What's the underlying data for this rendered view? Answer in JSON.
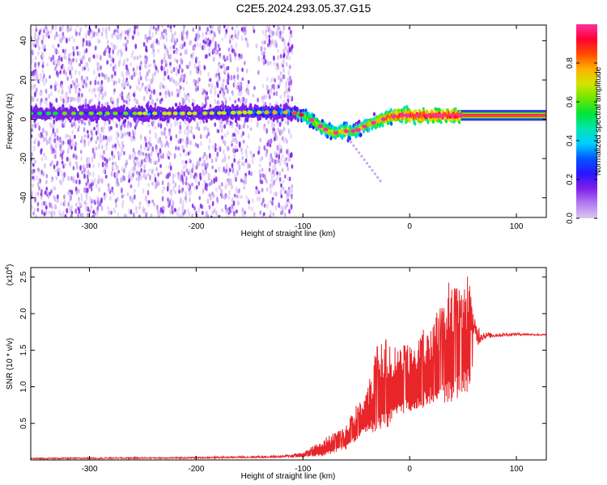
{
  "title": "C2E5.2024.293.05.37.G15",
  "chart_data": [
    {
      "type": "heatmap",
      "xlabel": "Height of straight line (km)",
      "ylabel": "Frequency (Hz)",
      "xlim": [
        -355,
        128
      ],
      "ylim": [
        -50,
        48
      ],
      "x_ticks": [
        -300,
        -200,
        -100,
        0,
        100
      ],
      "y_ticks": [
        -40,
        -20,
        0,
        20,
        40
      ],
      "colorbar": {
        "label": "Normalized spectral amplitude",
        "range": [
          0.0,
          1.0
        ],
        "ticks": [
          0.0,
          0.2,
          0.4,
          0.6,
          0.8
        ],
        "colors": [
          "#d9c8f2",
          "#b27bf0",
          "#7d1fe9",
          "#2a14ff",
          "#0057ff",
          "#00cfff",
          "#00e6b0",
          "#00e53a",
          "#6ae600",
          "#d3e600",
          "#ffb000",
          "#ff4d00",
          "#ff0033",
          "#ff2fa0"
        ]
      },
      "ridge": {
        "x": [
          -355,
          -300,
          -250,
          -200,
          -150,
          -110,
          -100,
          -90,
          -80,
          -70,
          -60,
          -50,
          -40,
          -30,
          -20,
          -10,
          0,
          10,
          20,
          30,
          40,
          50,
          128
        ],
        "y": [
          3,
          3,
          3,
          3,
          3.5,
          3.5,
          2,
          -1,
          -5,
          -7,
          -6,
          -6,
          -3,
          -1,
          1,
          2,
          2,
          2,
          2,
          2,
          2,
          2,
          2
        ],
        "amplitude": [
          0.3,
          0.35,
          0.4,
          0.4,
          0.45,
          0.5,
          0.7,
          0.75,
          0.8,
          0.8,
          0.8,
          0.75,
          0.8,
          0.85,
          0.9,
          0.95,
          1.0,
          1.0,
          1.0,
          1.0,
          1.0,
          1.0,
          1.0
        ]
      },
      "scatter_extent_x": [
        -355,
        -110
      ]
    },
    {
      "type": "line",
      "xlabel": "Height of straight line (km)",
      "ylabel": "SNR (10 * v/v)",
      "y_exponent_label": "(x10",
      "y_exponent_sup": "4",
      "y_exponent_close": ")",
      "xlim": [
        -355,
        128
      ],
      "ylim": [
        0,
        2.63
      ],
      "x_ticks": [
        -300,
        -200,
        -100,
        0,
        100
      ],
      "y_ticks": [
        0.5,
        1.0,
        1.5,
        2.0,
        2.5
      ],
      "color": "#e8262a",
      "envelope": {
        "x": [
          -355,
          -200,
          -120,
          -100,
          -80,
          -60,
          -50,
          -40,
          -30,
          -20,
          -10,
          0,
          10,
          20,
          30,
          40,
          50,
          55,
          60,
          70,
          80,
          100,
          128
        ],
        "base": [
          0.01,
          0.02,
          0.03,
          0.05,
          0.1,
          0.2,
          0.35,
          0.5,
          0.6,
          0.7,
          0.8,
          0.85,
          0.9,
          1.0,
          1.05,
          1.1,
          1.2,
          1.25,
          1.5,
          1.65,
          1.68,
          1.7,
          1.7
        ],
        "peak": [
          0.03,
          0.04,
          0.06,
          0.1,
          0.3,
          0.45,
          0.75,
          0.95,
          1.6,
          1.7,
          1.55,
          1.6,
          1.75,
          1.9,
          2.2,
          2.55,
          2.3,
          2.6,
          1.95,
          1.75,
          1.73,
          1.74,
          1.72
        ]
      }
    }
  ]
}
